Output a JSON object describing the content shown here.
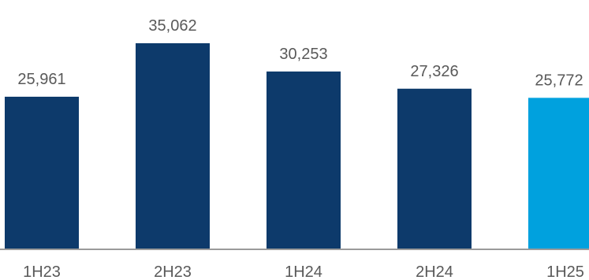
{
  "chart_data": {
    "type": "bar",
    "categories": [
      "1H23",
      "2H23",
      "1H24",
      "2H24",
      "1H25"
    ],
    "values": [
      25961,
      35062,
      30253,
      27326,
      25772
    ],
    "value_labels": [
      "25,961",
      "35,062",
      "30,253",
      "27,326",
      "25,772"
    ],
    "title": "",
    "xlabel": "",
    "ylabel": "",
    "ylim": [
      0,
      38000
    ],
    "grid": false,
    "legend": "none",
    "colors": {
      "default_bar": "#0d3a6b",
      "highlight_bar": "#00a1de",
      "axis": "#9a9a9a",
      "text": "#595959"
    },
    "highlight_index": 4
  }
}
